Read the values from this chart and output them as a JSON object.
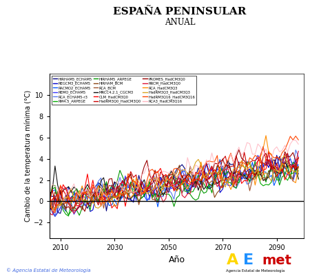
{
  "title": "ESPAÑA PENINSULAR",
  "subtitle": "ANUAL",
  "xlabel": "Año",
  "ylabel": "Cambio de la temperatura mínima (°C)",
  "xlim": [
    2006,
    2100
  ],
  "ylim": [
    -3.5,
    12
  ],
  "yticks": [
    -2,
    0,
    2,
    4,
    6,
    8,
    10
  ],
  "xticks": [
    2010,
    2030,
    2050,
    2070,
    2090
  ],
  "x_start": 2006,
  "x_end": 2098,
  "background_color": "#ffffff",
  "copyright_text": "© Agencia Estatal de Meteorología",
  "series": [
    {
      "label": "HIRHAM5_ECHAM5",
      "color": "#000080",
      "lw": 0.8,
      "alpha": 1.0,
      "trend": 0.0385,
      "seed": 1
    },
    {
      "label": "REGCM3_ECHAM5",
      "color": "#0000CD",
      "lw": 0.8,
      "alpha": 1.0,
      "trend": 0.037,
      "seed": 2
    },
    {
      "label": "RACMO2_ECHAM5",
      "color": "#0055FF",
      "lw": 0.8,
      "alpha": 1.0,
      "trend": 0.0355,
      "seed": 3
    },
    {
      "label": "REMO_ECHAM5",
      "color": "#3333FF",
      "lw": 0.8,
      "alpha": 1.0,
      "trend": 0.0368,
      "seed": 4
    },
    {
      "label": "RCA_ECHAM5-r3",
      "color": "#5577EE",
      "lw": 0.8,
      "alpha": 1.0,
      "trend": 0.036,
      "seed": 5
    },
    {
      "label": "RM4.5_ARPEGE",
      "color": "#00AA00",
      "lw": 0.8,
      "alpha": 1.0,
      "trend": 0.032,
      "seed": 6
    },
    {
      "label": "HIRHAM5_ARPEGE",
      "color": "#009900",
      "lw": 0.8,
      "alpha": 1.0,
      "trend": 0.033,
      "seed": 7
    },
    {
      "label": "HIRHAM_BCM",
      "color": "#8B4513",
      "lw": 0.8,
      "alpha": 1.0,
      "trend": 0.031,
      "seed": 8
    },
    {
      "label": "RCA_BCM",
      "color": "#A0522D",
      "lw": 0.8,
      "alpha": 1.0,
      "trend": 0.0295,
      "seed": 9
    },
    {
      "label": "MRCC4.2.1_CGCM3",
      "color": "#111111",
      "lw": 0.8,
      "alpha": 1.0,
      "trend": 0.034,
      "seed": 10
    },
    {
      "label": "CLM_HadCM3Q0",
      "color": "#FF0000",
      "lw": 0.8,
      "alpha": 1.0,
      "trend": 0.042,
      "seed": 11
    },
    {
      "label": "HadRM3Q0_HadCM3Q0",
      "color": "#CC0000",
      "lw": 0.8,
      "alpha": 1.0,
      "trend": 0.044,
      "seed": 12
    },
    {
      "label": "PROMES_HadCM3Q0",
      "color": "#990000",
      "lw": 0.8,
      "alpha": 1.0,
      "trend": 0.043,
      "seed": 13
    },
    {
      "label": "RRCM_HadCM3Q0",
      "color": "#DD1133",
      "lw": 0.8,
      "alpha": 1.0,
      "trend": 0.0415,
      "seed": 14
    },
    {
      "label": "RCA_HadCM3Q3",
      "color": "#FF8C00",
      "lw": 0.8,
      "alpha": 1.0,
      "trend": 0.038,
      "seed": 15
    },
    {
      "label": "HadRM3Q3_HadCM3Q3",
      "color": "#DAA520",
      "lw": 0.8,
      "alpha": 1.0,
      "trend": 0.0395,
      "seed": 16
    },
    {
      "label": "HadRM3Q16_HadCM3Q16",
      "color": "#FF4500",
      "lw": 0.8,
      "alpha": 1.0,
      "trend": 0.054,
      "seed": 17
    },
    {
      "label": "RCA3_HadCM3Q16",
      "color": "#FFB6C1",
      "lw": 0.8,
      "alpha": 0.85,
      "trend": 0.059,
      "seed": 18
    }
  ]
}
